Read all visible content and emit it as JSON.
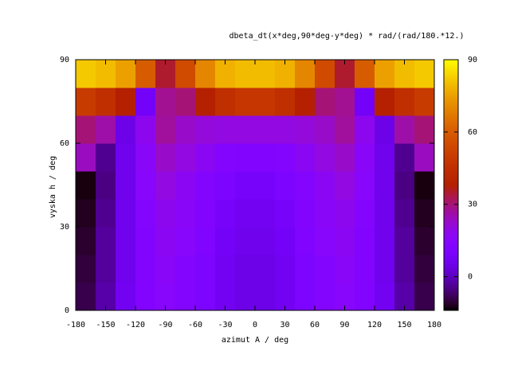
{
  "chart_data": {
    "type": "heatmap",
    "title": "dbeta_dt(x*deg,90*deg-y*deg) * rad/(rad/180.*12.)",
    "x_label": "azimut A / deg",
    "y_label": "vyska h / deg",
    "x": [
      -170,
      -150,
      -130,
      -110,
      -90,
      -70,
      -50,
      -30,
      -10,
      10,
      30,
      50,
      70,
      90,
      110,
      130,
      150,
      170
    ],
    "y": [
      5,
      15,
      25,
      35,
      45,
      55,
      65,
      75,
      85
    ],
    "values": [
      [
        -9,
        -2,
        7,
        13,
        15,
        14,
        11,
        7,
        5,
        5,
        7,
        11,
        14,
        15,
        13,
        7,
        -2,
        -9
      ],
      [
        -10,
        -3,
        6,
        13,
        16,
        14,
        11,
        7,
        5,
        5,
        7,
        11,
        14,
        16,
        13,
        6,
        -3,
        -10
      ],
      [
        -11,
        -3,
        6,
        13,
        17,
        15,
        12,
        8,
        6,
        6,
        8,
        12,
        15,
        17,
        13,
        6,
        -3,
        -11
      ],
      [
        -12,
        -4,
        6,
        14,
        18,
        16,
        13,
        9,
        7,
        7,
        9,
        13,
        16,
        18,
        14,
        6,
        -4,
        -12
      ],
      [
        -13,
        -5,
        6,
        15,
        20,
        17,
        14,
        11,
        9,
        9,
        11,
        14,
        17,
        20,
        15,
        6,
        -5,
        -13
      ],
      [
        24,
        -4,
        6,
        16,
        23,
        20,
        17,
        14,
        13,
        13,
        14,
        17,
        20,
        23,
        16,
        6,
        -4,
        24
      ],
      [
        30,
        26,
        5,
        18,
        27,
        23,
        21,
        20,
        20,
        20,
        20,
        21,
        23,
        27,
        18,
        5,
        26,
        30
      ],
      [
        50,
        45,
        38,
        8,
        28,
        30,
        38,
        45,
        48,
        48,
        45,
        38,
        30,
        28,
        8,
        38,
        45,
        50
      ],
      [
        82,
        80,
        75,
        60,
        35,
        55,
        70,
        78,
        80,
        80,
        78,
        70,
        55,
        35,
        60,
        75,
        80,
        82
      ]
    ],
    "xlim": [
      -180,
      180
    ],
    "xticks": [
      -180,
      -150,
      -120,
      -90,
      -60,
      -30,
      0,
      30,
      60,
      90,
      120,
      150,
      180
    ],
    "ylim": [
      0,
      90
    ],
    "yticks": [
      0,
      30,
      60,
      90
    ],
    "clim": [
      -14,
      90
    ],
    "cticks": [
      0,
      30,
      60,
      90
    ]
  }
}
